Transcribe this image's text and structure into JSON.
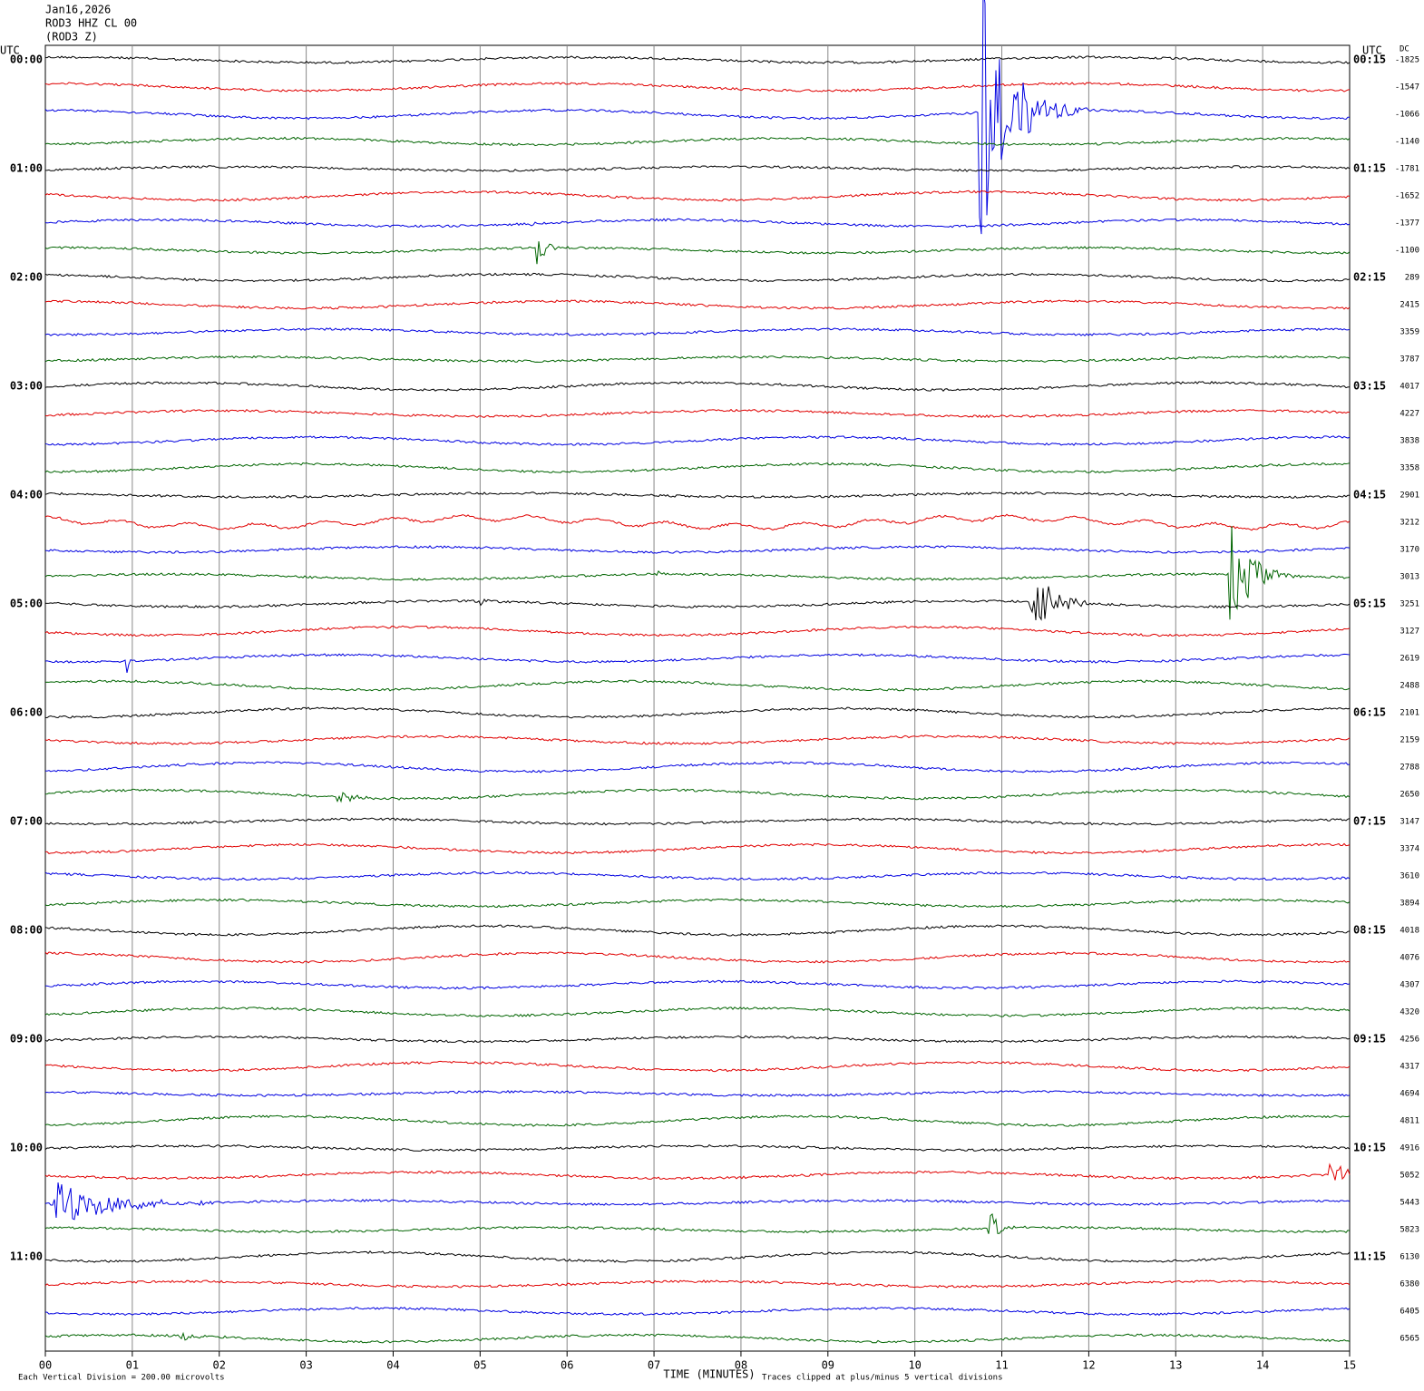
{
  "header": {
    "date": "Jan16,2026",
    "station": "ROD3 HHZ CL 00",
    "component": "(ROD3 Z)"
  },
  "left_axis": {
    "title": "UTC",
    "labels": [
      "00:00",
      "01:00",
      "02:00",
      "03:00",
      "04:00",
      "05:00",
      "06:00",
      "07:00",
      "08:00",
      "09:00",
      "10:00",
      "11:00"
    ]
  },
  "right_axis": {
    "title": "UTC",
    "labels": [
      "00:15",
      "01:15",
      "02:15",
      "03:15",
      "04:15",
      "05:15",
      "06:15",
      "07:15",
      "08:15",
      "09:15",
      "10:15",
      "11:15"
    ]
  },
  "dc": {
    "title": "DC",
    "values": [
      "-1825",
      "-1547",
      "-1066",
      "-1140",
      "-1781",
      "-1652",
      "-1377",
      "-1100",
      "289",
      "2415",
      "3359",
      "3787",
      "4017",
      "4227",
      "3838",
      "3358",
      "2901",
      "3212",
      "3170",
      "3013",
      "3251",
      "3127",
      "2619",
      "2488",
      "2101",
      "2159",
      "2788",
      "2650",
      "3147",
      "3374",
      "3610",
      "3894",
      "4018",
      "4076",
      "4307",
      "4320",
      "4256",
      "4317",
      "4694",
      "4811",
      "4916",
      "5052",
      "5443",
      "5823",
      "6130",
      "6380",
      "6405",
      "6565"
    ]
  },
  "x_axis": {
    "title": "TIME (MINUTES)",
    "labels": [
      "00",
      "01",
      "02",
      "03",
      "04",
      "05",
      "06",
      "07",
      "08",
      "09",
      "10",
      "11",
      "12",
      "13",
      "14",
      "15"
    ]
  },
  "footer": {
    "scale_note": "Each Vertical Division =  200.00 microvolts",
    "clip_note": "Traces clipped at plus/minus 5 vertical divisions"
  }
}
